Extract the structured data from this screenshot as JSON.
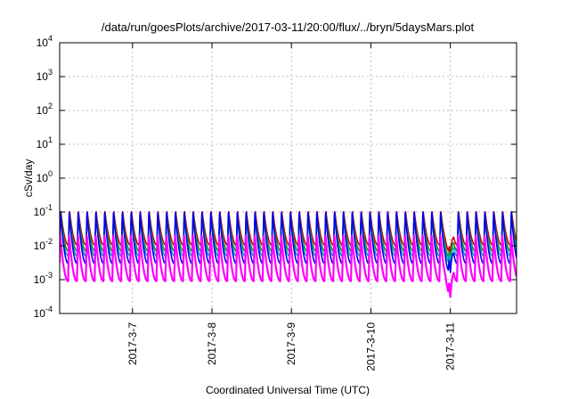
{
  "chart_data": {
    "type": "line",
    "title": "/data/run/goesPlots/archive/2017-03-11/20:00/flux/../bryn/5daysMars.plot",
    "xlabel": "Coordinated Universal Time (UTC)",
    "ylabel": "cSv/day",
    "y_scale": "log",
    "ylim": [
      0.0001,
      10000
    ],
    "y_ticks": [
      {
        "base": "10",
        "exp": "-4"
      },
      {
        "base": "10",
        "exp": "-3"
      },
      {
        "base": "10",
        "exp": "-2"
      },
      {
        "base": "10",
        "exp": "-1"
      },
      {
        "base": "10",
        "exp": "0"
      },
      {
        "base": "10",
        "exp": "1"
      },
      {
        "base": "10",
        "exp": "2"
      },
      {
        "base": "10",
        "exp": "3"
      },
      {
        "base": "10",
        "exp": "4"
      }
    ],
    "xlim": [
      "2017-03-06 02:00",
      "2017-03-11 20:00"
    ],
    "x_ticks": [
      "2017-3-7",
      "2017-3-8",
      "2017-3-9",
      "2017-3-10",
      "2017-3-11"
    ],
    "x_tick_dates": [
      "2017-03-07 00:00",
      "2017-03-08 00:00",
      "2017-03-09 00:00",
      "2017-03-10 00:00",
      "2017-03-11 00:00"
    ],
    "grid": true,
    "legend": "none",
    "pattern": {
      "period_hours": 2.67,
      "dip_start": "2017-03-10 22:30",
      "dip_end": "2017-03-11 01:00",
      "dip_min_date": "2017-03-11 00:00"
    },
    "series": [
      {
        "color": "#cc0000",
        "peak": 0.105,
        "trough": 0.0105,
        "dip_min": 0.0055
      },
      {
        "color": "#228b22",
        "peak": 0.09,
        "trough": 0.007,
        "dip_min": 0.0035
      },
      {
        "color": "#00aaaa",
        "peak": 0.075,
        "trough": 0.005,
        "dip_min": 0.0025
      },
      {
        "color": "#0000ee",
        "peak": 0.11,
        "trough": 0.003,
        "dip_min": 0.0013
      },
      {
        "color": "#ff00ff",
        "peak": 0.02,
        "trough": 0.0009,
        "dip_min": 0.00025
      }
    ]
  }
}
